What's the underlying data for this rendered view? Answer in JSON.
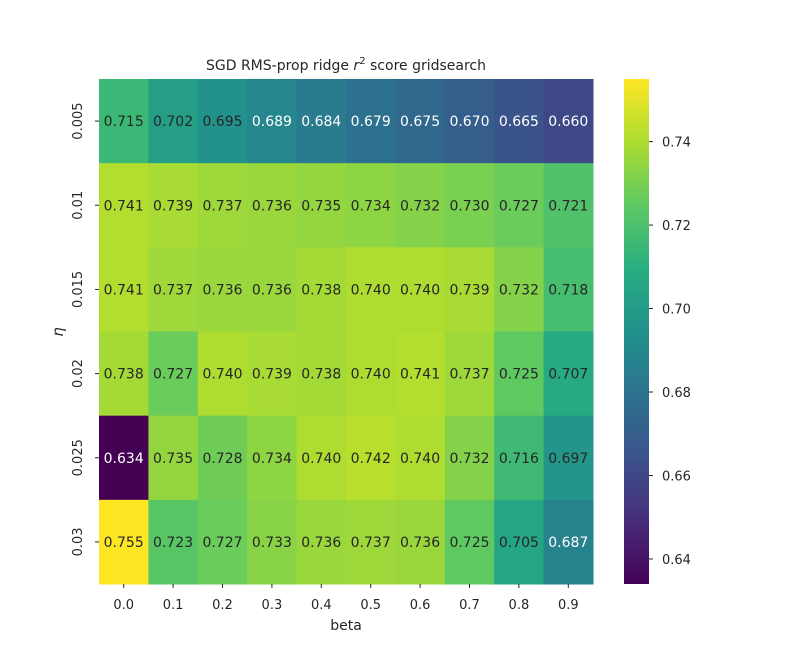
{
  "chart_data": {
    "type": "heatmap",
    "title_main": "SGD RMS-prop ridge ",
    "title_var": "r",
    "title_sup": "2",
    "title_rest": " score gridsearch",
    "xlabel": "beta",
    "ylabel": "η",
    "x_categories": [
      "0.0",
      "0.1",
      "0.2",
      "0.3",
      "0.4",
      "0.5",
      "0.6",
      "0.7",
      "0.8",
      "0.9"
    ],
    "y_categories": [
      "0.005",
      "0.01",
      "0.015",
      "0.02",
      "0.025",
      "0.03"
    ],
    "values": [
      [
        0.715,
        0.702,
        0.695,
        0.689,
        0.684,
        0.679,
        0.675,
        0.67,
        0.665,
        0.66
      ],
      [
        0.741,
        0.739,
        0.737,
        0.736,
        0.735,
        0.734,
        0.732,
        0.73,
        0.727,
        0.721
      ],
      [
        0.741,
        0.737,
        0.736,
        0.736,
        0.738,
        0.74,
        0.74,
        0.739,
        0.732,
        0.718
      ],
      [
        0.738,
        0.727,
        0.74,
        0.739,
        0.738,
        0.74,
        0.741,
        0.737,
        0.725,
        0.707
      ],
      [
        0.634,
        0.735,
        0.728,
        0.734,
        0.74,
        0.742,
        0.74,
        0.732,
        0.716,
        0.697
      ],
      [
        0.755,
        0.723,
        0.727,
        0.733,
        0.736,
        0.737,
        0.736,
        0.725,
        0.705,
        0.687
      ]
    ],
    "colormap": "viridis",
    "vmin": 0.634,
    "vmax": 0.755,
    "colorbar_ticks": [
      "0.64",
      "0.66",
      "0.68",
      "0.70",
      "0.72",
      "0.74"
    ],
    "annotations_format": "3 decimals"
  }
}
